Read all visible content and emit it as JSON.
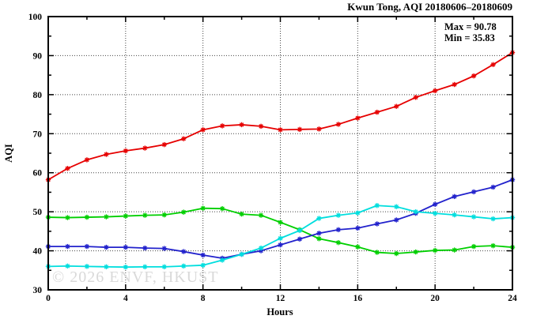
{
  "title": "Kwun Tong, AQI 20180606–20180609",
  "watermark": "© 2026 ENVF, HKUST",
  "annotations": {
    "max_label": "Max = 90.78",
    "min_label": "Min = 35.83"
  },
  "axes": {
    "xlabel": "Hours",
    "ylabel": "AQI"
  },
  "chart_data": {
    "type": "line",
    "title": "Kwun Tong, AQI 20180606–20180609",
    "xlabel": "Hours",
    "ylabel": "AQI",
    "xlim": [
      0,
      24
    ],
    "ylim": [
      30,
      100
    ],
    "x_major_ticks": [
      0,
      4,
      8,
      12,
      16,
      20,
      24
    ],
    "x_minor_step": 2,
    "y_major_ticks": [
      30,
      40,
      50,
      60,
      70,
      80,
      90,
      100
    ],
    "y_minor_step": 5,
    "grid": "dotted-at-major-ticks",
    "legend_position": "none",
    "marker": "asterisk",
    "max_value": 90.78,
    "min_value": 35.83,
    "x": [
      0,
      1,
      2,
      3,
      4,
      5,
      6,
      7,
      8,
      9,
      10,
      11,
      12,
      13,
      14,
      15,
      16,
      17,
      18,
      19,
      20,
      21,
      22,
      23,
      24
    ],
    "series": [
      {
        "name": "series-red",
        "color": "#e60000",
        "values": [
          58.2,
          61.1,
          63.3,
          64.7,
          65.6,
          66.3,
          67.2,
          68.7,
          71.0,
          72.0,
          72.3,
          71.9,
          71.0,
          71.1,
          71.2,
          72.4,
          74.0,
          75.5,
          77.0,
          79.3,
          81.0,
          82.6,
          84.8,
          87.7,
          90.78
        ]
      },
      {
        "name": "series-green",
        "color": "#00cf00",
        "values": [
          48.6,
          48.5,
          48.6,
          48.7,
          48.9,
          49.1,
          49.2,
          49.9,
          50.9,
          50.8,
          49.4,
          49.1,
          47.3,
          45.4,
          43.1,
          42.1,
          41.0,
          39.6,
          39.3,
          39.7,
          40.1,
          40.2,
          41.1,
          41.3,
          40.9
        ]
      },
      {
        "name": "series-blue",
        "color": "#2222cc",
        "values": [
          41.1,
          41.1,
          41.1,
          40.9,
          40.9,
          40.7,
          40.6,
          39.8,
          38.9,
          38.1,
          39.1,
          40.0,
          41.5,
          43.0,
          44.5,
          45.4,
          45.8,
          46.9,
          47.9,
          49.6,
          51.9,
          53.9,
          55.1,
          56.3,
          58.2
        ]
      },
      {
        "name": "series-cyan",
        "color": "#00dede",
        "values": [
          36.0,
          36.1,
          36.0,
          35.9,
          35.83,
          35.9,
          35.9,
          36.1,
          36.3,
          37.6,
          39.1,
          40.7,
          43.2,
          45.2,
          48.3,
          49.1,
          49.7,
          51.6,
          51.3,
          50.0,
          49.6,
          49.2,
          48.7,
          48.2,
          48.5
        ]
      }
    ]
  },
  "colors": {
    "axis": "#000000",
    "grid": "#444444",
    "background": "#ffffff",
    "watermark": "#d9d9d9"
  }
}
